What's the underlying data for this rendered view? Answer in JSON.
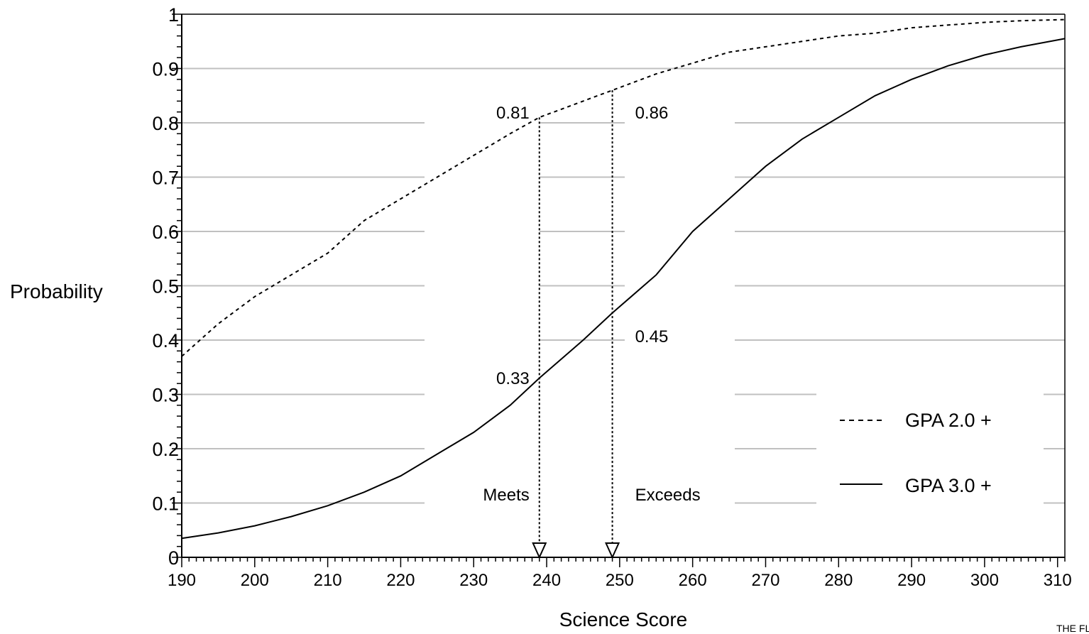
{
  "chart_data": {
    "type": "line",
    "xlabel": "Science Score",
    "ylabel": "Probability",
    "xlim": [
      190,
      311
    ],
    "ylim": [
      0,
      1
    ],
    "x_ticks": [
      "190",
      "200",
      "210",
      "220",
      "230",
      "240",
      "250",
      "260",
      "270",
      "280",
      "290",
      "300",
      "310"
    ],
    "y_ticks": [
      "0",
      "0.1",
      "0.2",
      "0.3",
      "0.4",
      "0.5",
      "0.6",
      "0.7",
      "0.8",
      "0.9",
      "1"
    ],
    "grid": true,
    "legend_position": "lower-right",
    "series": [
      {
        "name": "GPA 2.0 +",
        "style": "dashed",
        "x": [
          190,
          195,
          200,
          205,
          210,
          215,
          220,
          225,
          230,
          235,
          239,
          245,
          249,
          255,
          260,
          265,
          270,
          275,
          280,
          285,
          290,
          295,
          300,
          305,
          311
        ],
        "y": [
          0.37,
          0.43,
          0.48,
          0.52,
          0.56,
          0.62,
          0.66,
          0.7,
          0.74,
          0.78,
          0.81,
          0.84,
          0.86,
          0.89,
          0.91,
          0.93,
          0.94,
          0.95,
          0.96,
          0.965,
          0.975,
          0.98,
          0.985,
          0.988,
          0.99
        ]
      },
      {
        "name": "GPA 3.0 +",
        "style": "solid",
        "x": [
          190,
          195,
          200,
          205,
          210,
          215,
          220,
          225,
          230,
          235,
          239,
          245,
          249,
          255,
          260,
          265,
          270,
          275,
          280,
          285,
          290,
          295,
          300,
          305,
          311
        ],
        "y": [
          0.035,
          0.045,
          0.058,
          0.075,
          0.095,
          0.12,
          0.15,
          0.19,
          0.23,
          0.28,
          0.33,
          0.4,
          0.45,
          0.52,
          0.6,
          0.66,
          0.72,
          0.77,
          0.81,
          0.85,
          0.88,
          0.905,
          0.925,
          0.94,
          0.955
        ]
      }
    ],
    "cut_scores": [
      {
        "label": "Meets",
        "x": 239,
        "gpa2_value": "0.81",
        "gpa3_value": "0.33"
      },
      {
        "label": "Exceeds",
        "x": 249,
        "gpa2_value": "0.86",
        "gpa3_value": "0.45"
      }
    ]
  },
  "footer_text": "THE FL"
}
